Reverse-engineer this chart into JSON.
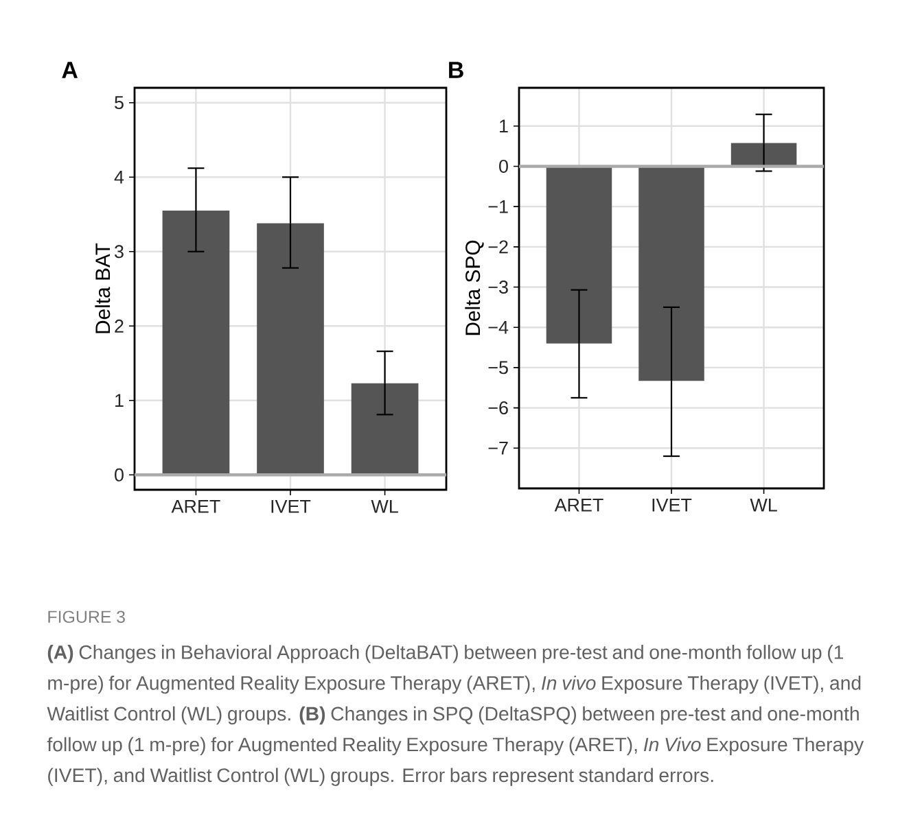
{
  "chart_data": [
    {
      "type": "bar",
      "title": "A",
      "ylabel": "Delta BAT",
      "categories": [
        "ARET",
        "IVET",
        "WL"
      ],
      "color": "#555555",
      "values": [
        3.55,
        3.38,
        1.23
      ],
      "errors": [
        [
          3.0,
          4.12
        ],
        [
          2.78,
          4.0
        ],
        [
          0.81,
          1.66
        ]
      ],
      "ylim": [
        -0.2,
        5.2
      ],
      "yticks": [
        0,
        1,
        2,
        3,
        4,
        5
      ],
      "grid": true,
      "ref_lines": [
        {
          "axis": "y",
          "value": 0,
          "color": "#aaaaaa"
        }
      ]
    },
    {
      "type": "bar",
      "title": "B",
      "ylabel": "Delta SPQ",
      "categories": [
        "ARET",
        "IVET",
        "WL"
      ],
      "color": "#555555",
      "values": [
        -4.4,
        -5.33,
        0.58
      ],
      "errors": [
        [
          -5.75,
          -3.07
        ],
        [
          -7.2,
          -3.5
        ],
        [
          -0.12,
          1.29
        ]
      ],
      "ylim": [
        -8.0,
        1.95
      ],
      "yticks": [
        {
          "value": -7,
          "label": "−7"
        },
        {
          "value": -6,
          "label": "−6"
        },
        {
          "value": -5,
          "label": "−5"
        },
        {
          "value": -4,
          "label": "−4"
        },
        {
          "value": -3,
          "label": "−3"
        },
        {
          "value": -2,
          "label": "−2"
        },
        {
          "value": -1,
          "label": "−1"
        },
        0,
        1
      ],
      "grid": true,
      "ref_lines": [
        {
          "axis": "y",
          "value": 0,
          "color": "#aaaaaa"
        }
      ],
      "annotations": [
        "FIGURE 3",
        "**(A)** Changes in Behavioral Approach (DeltaBAT) between pre-test and one-month follow up (1 m-pre) for Augmented Reality Exposure Therapy (ARET), *In vivo* Exposure Therapy (IVET), and Waitlist Control (WL) groups. **(B)** Changes in SPQ (DeltaSPQ) between pre-test and one-month follow up (1 m-pre) for Augmented Reality Exposure Therapy (ARET), *In Vivo* Exposure Therapy (IVET), and Waitlist Control (WL) groups. Error bars represent standard errors."
      ]
    }
  ]
}
